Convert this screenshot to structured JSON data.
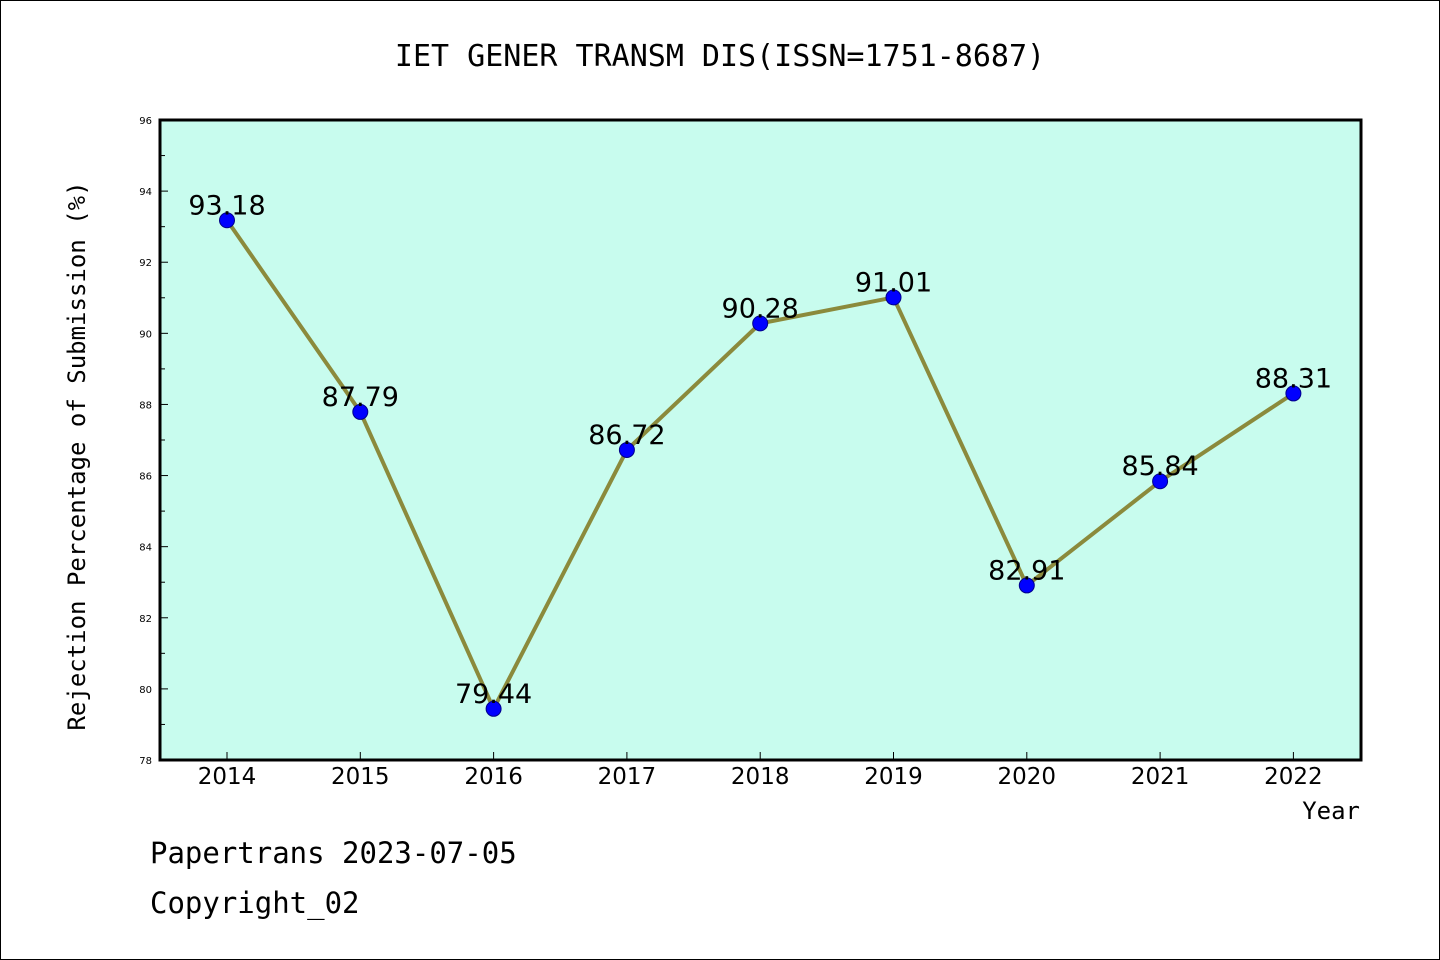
{
  "chart_data": {
    "type": "line",
    "title": "IET GENER TRANSM DIS(ISSN=1751-8687)",
    "xlabel": "Year",
    "ylabel": "Rejection Percentage of Submission (%)",
    "categories": [
      "2014",
      "2015",
      "2016",
      "2017",
      "2018",
      "2019",
      "2020",
      "2021",
      "2022"
    ],
    "values": [
      93.18,
      87.79,
      79.44,
      86.72,
      90.28,
      91.01,
      82.91,
      85.84,
      88.31
    ],
    "data_labels": [
      "93.18",
      "87.79",
      "79.44",
      "86.72",
      "90.28",
      "91.01",
      "82.91",
      "85.84",
      "88.31"
    ],
    "ylim": [
      78,
      96
    ],
    "yticks": [
      78,
      80,
      82,
      84,
      86,
      88,
      90,
      92,
      94,
      96
    ],
    "grid": false,
    "colors": {
      "plot_background": "#c8fcee",
      "line": "#8b8a3c",
      "marker": "#0000ff"
    }
  },
  "footer": {
    "line1": "Papertrans 2023-07-05",
    "line2": "Copyright_02"
  }
}
